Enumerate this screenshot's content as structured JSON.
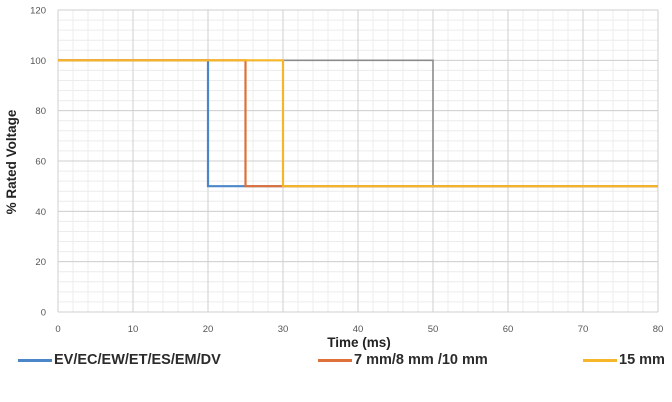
{
  "chart_data": {
    "type": "line",
    "title": "",
    "xlabel": "Time (ms)",
    "ylabel": "% Rated Voltage",
    "xlim": [
      0,
      80
    ],
    "ylim": [
      0,
      120
    ],
    "xticks": [
      0,
      10,
      20,
      30,
      40,
      50,
      60,
      70,
      80
    ],
    "yticks": [
      0,
      20,
      40,
      60,
      80,
      100,
      120
    ],
    "grid": true,
    "minor_grid": true,
    "legend_position": "bottom",
    "series": [
      {
        "name": "",
        "color": "#8c8c8c",
        "x": [
          0,
          50,
          50,
          80
        ],
        "y": [
          100,
          100,
          50,
          50
        ]
      },
      {
        "name": "EV/EC/EW/ET/ES/EM/DV",
        "color": "#4a86c8",
        "x": [
          0,
          20,
          20,
          80
        ],
        "y": [
          100,
          100,
          50,
          50
        ]
      },
      {
        "name": "7 mm/8 mm /10 mm",
        "color": "#e0703a",
        "x": [
          0,
          25,
          25,
          80
        ],
        "y": [
          100,
          100,
          50,
          50
        ]
      },
      {
        "name": "15 mm",
        "color": "#f5b62a",
        "x": [
          0,
          30,
          30,
          80
        ],
        "y": [
          100,
          100,
          50,
          50
        ]
      }
    ]
  }
}
